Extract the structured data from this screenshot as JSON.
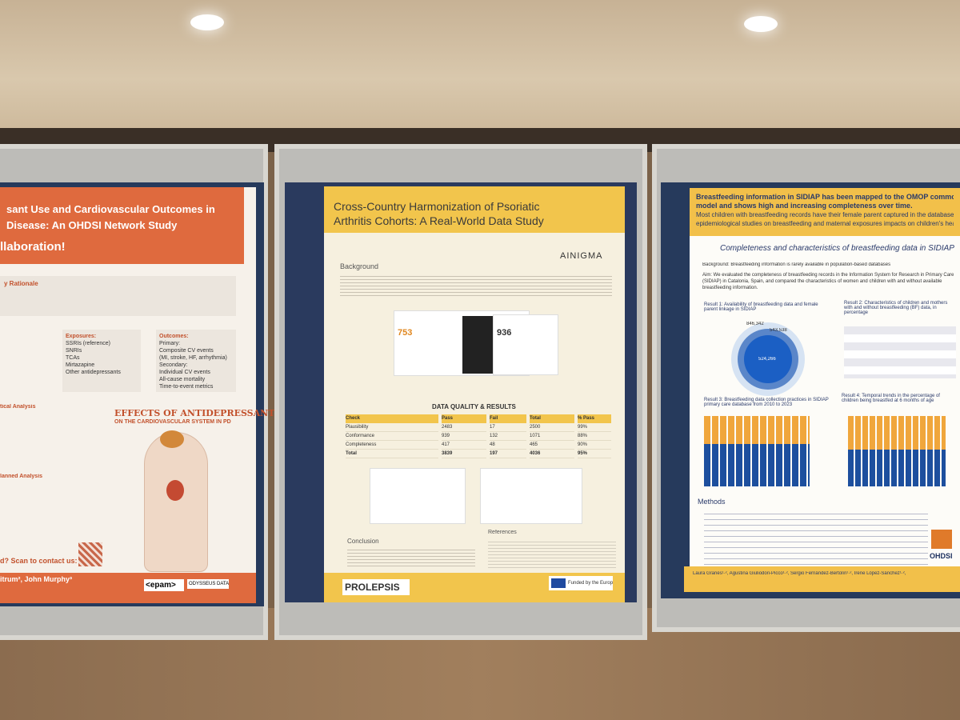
{
  "left_poster": {
    "title_line1": "sant Use and Cardiovascular Outcomes in",
    "title_line2": "Disease: An OHDSI Network Study",
    "banner": "llaboration!",
    "rationale_heading": "y Rationale",
    "exposures_heading": "Exposures:",
    "exposures": [
      "SSRIs (reference)",
      "SNRIs",
      "TCAs",
      "Mirtazapine",
      "Other antidepressants"
    ],
    "outcomes_heading": "Outcomes:",
    "outcomes": [
      "Primary:",
      "Composite CV events",
      "(MI, stroke, HF, arrhythmia)",
      "Secondary:",
      "Individual CV events",
      "All-cause mortality",
      "Time-to-event metrics"
    ],
    "effects_title": "EFFECTS OF ANTIDEPRESSANTS",
    "effects_subtitle": "ON THE CARDIOVASCULAR SYSTEM IN PD",
    "analysis_heading": "tical Analysis",
    "planned_heading": "lanned Analysis",
    "contact": "d? Scan to contact us:",
    "authors": "itrum², John Murphy³",
    "logo1": "<epam>",
    "logo2": "ODYSSEUS DATA SERVICES"
  },
  "middle_poster": {
    "title_line1": "Cross-Country Harmonization of Psoriatic",
    "title_line2": "Arthritis Cohorts: A Real-World Data Study",
    "logo": "AINIGMA",
    "background_heading": "Background",
    "dq_heading": "DATA QUALITY & RESULTS",
    "table": {
      "header": [
        "Check",
        "Pass",
        "Fail",
        "Total",
        "% Pass"
      ],
      "rows": [
        [
          "Plausibility",
          "2483",
          "17",
          "2500",
          "99%"
        ],
        [
          "Conformance",
          "939",
          "132",
          "1071",
          "88%"
        ],
        [
          "Completeness",
          "417",
          "48",
          "465",
          "90%"
        ],
        [
          "Total",
          "3839",
          "197",
          "4036",
          "95%"
        ]
      ]
    },
    "left_count": "753",
    "right_count": "936",
    "conclusion_heading": "Conclusion",
    "references_heading": "References",
    "footer_logo": "PROLEPSIS",
    "funding": "Funded by the European Union"
  },
  "right_poster": {
    "header_line1": "Breastfeeding information in SIDIAP has been mapped to the OMOP common d",
    "header_line2": "model and shows high and increasing completeness over time.",
    "header_line3": "Most children with breastfeeding records have their female parent captured in the database, enabling",
    "header_line4": "epidemiological studies on breastfeeding and maternal exposures impacts on children's health",
    "subtitle": "Completeness and characteristics of breastfeeding data in SIDIAP",
    "background": "Background: Breastfeeding information is rarely available in population-based databases",
    "aim": "Aim: We evaluated the completeness of breastfeeding records in the Information System for Research in Primary Care (SIDIAP) in Catalonia, Spain, and compared the characteristics of women and children with and without available breastfeeding information.",
    "result1": "Result 1: Availability of breastfeeding data and female parent linkage in SIDIAP",
    "result2": "Result 2: Characteristics of children and mothers with and without breastfeeding (BF) data, in percentage",
    "donut_outer": "846,342",
    "donut_mid": "543,538",
    "donut_inner": "524,266",
    "result3": "Result 3: Breastfeeding data collection practices in SIDIAP primary care database from 2010 to 2023",
    "result4": "Result 4: Temporal trends in the percentage of children being breastfed at 6 months of age",
    "methods_heading": "Methods",
    "authors": "Laura Granés¹·², Agustina Giuliodori-Picco¹·², Sergio Fernández-Bertolín¹·², Irene López-Sánchez¹·²,",
    "logo": "OHDSI"
  }
}
